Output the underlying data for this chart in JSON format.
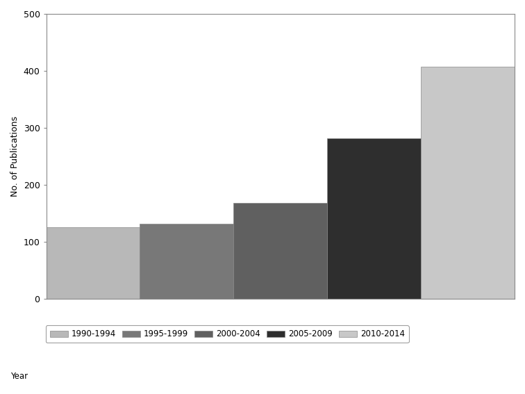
{
  "categories": [
    "1990-1994",
    "1995-1999",
    "2000-2004",
    "2005-2009",
    "2010-2014"
  ],
  "values": [
    125,
    132,
    168,
    282,
    407
  ],
  "bar_colors": [
    "#b8b8b8",
    "#787878",
    "#606060",
    "#2e2e2e",
    "#c8c8c8"
  ],
  "ylabel": "No. of Publications",
  "ylim": [
    0,
    500
  ],
  "yticks": [
    0,
    100,
    200,
    300,
    400,
    500
  ],
  "legend_label": "Year",
  "background_color": "#ffffff",
  "bar_edge_color": "#888888",
  "legend_fontsize": 8.5,
  "ylabel_fontsize": 9
}
